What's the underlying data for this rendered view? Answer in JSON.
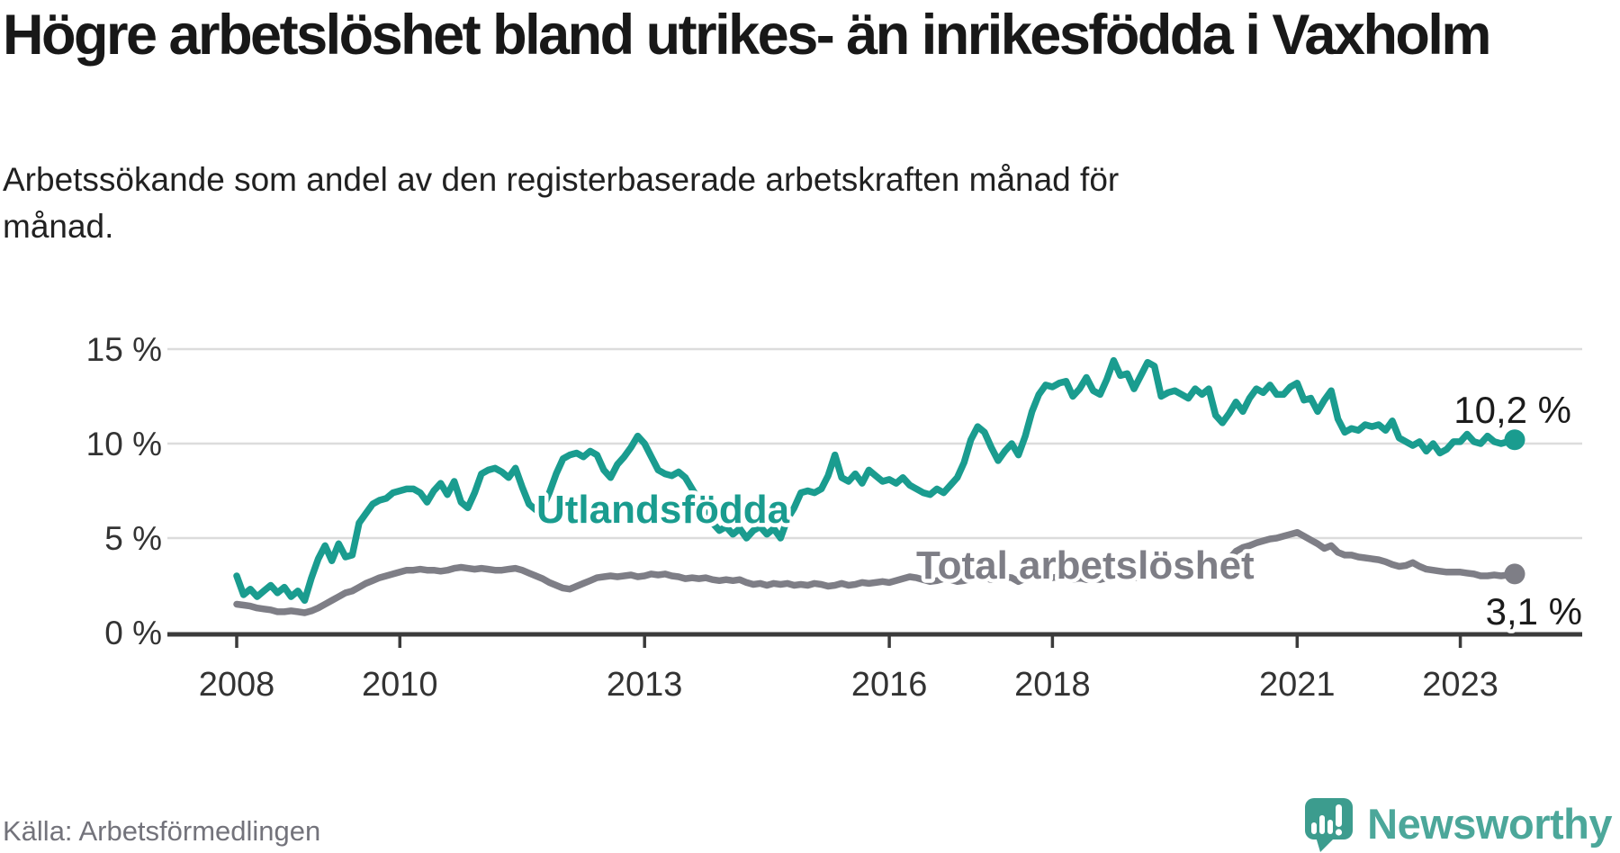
{
  "title": "Högre arbetslöshet bland utrikes- än inrikesfödda i Vaxholm",
  "subtitle": "Arbetssökande som andel av den registerbaserade arbetskraften månad för månad.",
  "source": "Källa: Arbetsförmedlingen",
  "branding": {
    "name": "Newsworthy",
    "logo_icon": "speech-bubble-bar-chart-icon",
    "text_color": "#4CA79A",
    "bubble_color": "#3C9C8E"
  },
  "chart_data": {
    "type": "line",
    "title": "Högre arbetslöshet bland utrikes- än inrikesfödda i Vaxholm",
    "subtitle": "Arbetssökande som andel av den registerbaserade arbetskraften månad för månad.",
    "unit": "%",
    "x_start": "2008-01",
    "x_end": "2023-09",
    "grid": "horizontal",
    "legend_position": "inline-labels",
    "y_axis": {
      "ticks": [
        0,
        5,
        10,
        15
      ],
      "tick_labels": [
        "0 %",
        "5 %",
        "10 %",
        "15 %"
      ],
      "range": [
        0,
        16.5
      ]
    },
    "x_axis": {
      "tick_years": [
        2008,
        2010,
        2013,
        2016,
        2018,
        2021,
        2023
      ]
    },
    "series": [
      {
        "name": "Utlandsfödda",
        "color": "#1A9C8F",
        "end_label": "10,2 %",
        "end_value": 10.2,
        "values": [
          3.0,
          2.0,
          2.3,
          1.9,
          2.2,
          2.5,
          2.1,
          2.4,
          1.9,
          2.2,
          1.7,
          2.9,
          3.9,
          4.6,
          3.8,
          4.7,
          4.0,
          4.1,
          5.8,
          6.3,
          6.8,
          7.0,
          7.1,
          7.4,
          7.5,
          7.6,
          7.6,
          7.4,
          6.9,
          7.5,
          7.9,
          7.3,
          8.0,
          6.9,
          6.6,
          7.4,
          8.4,
          8.6,
          8.7,
          8.5,
          8.2,
          8.7,
          7.7,
          6.8,
          6.5,
          6.6,
          7.4,
          8.4,
          9.2,
          9.4,
          9.5,
          9.3,
          9.6,
          9.4,
          8.6,
          8.2,
          8.9,
          9.3,
          9.8,
          10.4,
          10.0,
          9.3,
          8.6,
          8.4,
          8.3,
          8.5,
          8.2,
          7.6,
          7.0,
          6.4,
          5.8,
          5.4,
          5.6,
          5.2,
          5.5,
          5.0,
          5.4,
          5.6,
          5.2,
          5.5,
          5.0,
          6.0,
          6.6,
          7.4,
          7.5,
          7.4,
          7.6,
          8.3,
          9.4,
          8.2,
          8.0,
          8.4,
          7.9,
          8.6,
          8.3,
          8.0,
          8.1,
          7.9,
          8.2,
          7.8,
          7.6,
          7.4,
          7.3,
          7.6,
          7.4,
          7.8,
          8.2,
          9.0,
          10.2,
          10.9,
          10.6,
          9.8,
          9.1,
          9.6,
          10.0,
          9.4,
          10.4,
          11.7,
          12.6,
          13.1,
          13.0,
          13.2,
          13.3,
          12.5,
          12.9,
          13.5,
          12.8,
          12.6,
          13.4,
          14.4,
          13.6,
          13.7,
          12.9,
          13.6,
          14.3,
          14.1,
          12.5,
          12.7,
          12.8,
          12.6,
          12.4,
          12.9,
          12.6,
          12.9,
          11.5,
          11.1,
          11.6,
          12.2,
          11.7,
          12.4,
          12.9,
          12.7,
          13.1,
          12.6,
          12.6,
          13.0,
          13.2,
          12.3,
          12.4,
          11.7,
          12.3,
          12.8,
          11.3,
          10.6,
          10.8,
          10.7,
          11.0,
          10.9,
          11.0,
          10.7,
          11.2,
          10.3,
          10.1,
          9.9,
          10.1,
          9.6,
          10.0,
          9.5,
          9.7,
          10.1,
          10.1,
          10.5,
          10.1,
          10.0,
          10.4,
          10.1,
          10.0,
          10.1,
          10.2
        ]
      },
      {
        "name": "Total arbetslöshet",
        "color": "#7E7E86",
        "end_label": "3,1 %",
        "end_value": 3.1,
        "values": [
          1.5,
          1.45,
          1.4,
          1.3,
          1.25,
          1.2,
          1.1,
          1.1,
          1.15,
          1.1,
          1.05,
          1.15,
          1.3,
          1.5,
          1.7,
          1.9,
          2.1,
          2.2,
          2.4,
          2.6,
          2.75,
          2.9,
          3.0,
          3.1,
          3.2,
          3.3,
          3.3,
          3.35,
          3.3,
          3.3,
          3.25,
          3.3,
          3.4,
          3.45,
          3.4,
          3.35,
          3.4,
          3.35,
          3.3,
          3.3,
          3.35,
          3.4,
          3.3,
          3.15,
          3.0,
          2.85,
          2.65,
          2.5,
          2.35,
          2.3,
          2.45,
          2.6,
          2.75,
          2.9,
          2.95,
          3.0,
          2.95,
          3.0,
          3.05,
          2.95,
          3.0,
          3.1,
          3.05,
          3.1,
          3.0,
          2.95,
          2.85,
          2.9,
          2.85,
          2.9,
          2.8,
          2.75,
          2.8,
          2.75,
          2.8,
          2.65,
          2.55,
          2.6,
          2.5,
          2.6,
          2.55,
          2.6,
          2.5,
          2.55,
          2.5,
          2.6,
          2.55,
          2.45,
          2.5,
          2.6,
          2.5,
          2.55,
          2.65,
          2.6,
          2.65,
          2.7,
          2.65,
          2.75,
          2.85,
          2.95,
          2.9,
          2.8,
          2.7,
          2.75,
          2.85,
          2.8,
          2.7,
          2.75,
          2.85,
          2.95,
          2.9,
          2.8,
          2.85,
          2.95,
          2.9,
          2.7,
          2.85,
          2.95,
          2.9,
          2.95,
          2.9,
          2.95,
          2.85,
          2.8,
          2.9,
          2.8,
          2.85,
          2.8,
          2.9,
          2.95,
          2.9,
          2.95,
          2.9,
          2.95,
          3.05,
          3.0,
          3.05,
          3.1,
          3.05,
          3.1,
          3.2,
          3.3,
          3.25,
          3.35,
          3.5,
          3.6,
          3.9,
          4.3,
          4.5,
          4.6,
          4.75,
          4.85,
          4.95,
          5.0,
          5.1,
          5.2,
          5.3,
          5.1,
          4.9,
          4.7,
          4.45,
          4.6,
          4.25,
          4.1,
          4.1,
          4.0,
          3.95,
          3.9,
          3.85,
          3.75,
          3.6,
          3.5,
          3.55,
          3.7,
          3.5,
          3.35,
          3.3,
          3.25,
          3.2,
          3.2,
          3.2,
          3.15,
          3.1,
          3.0,
          3.0,
          3.05,
          3.0,
          3.05,
          3.1
        ]
      }
    ]
  }
}
